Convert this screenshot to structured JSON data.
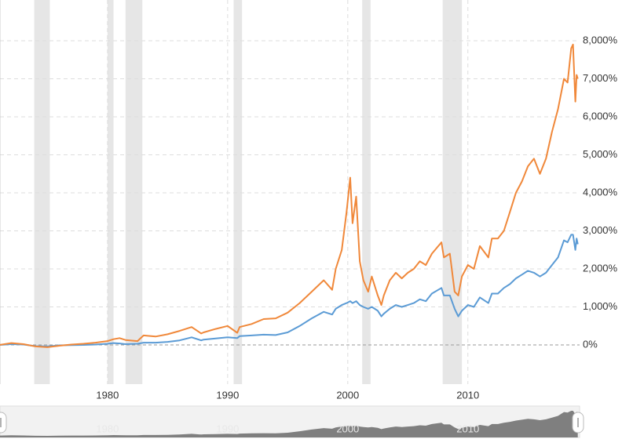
{
  "chart_data": {
    "type": "line",
    "x": [
      1971,
      1972,
      1973,
      1974,
      1975,
      1976,
      1977,
      1978,
      1979,
      1980,
      1980.5,
      1981,
      1981.5,
      1982.5,
      1983,
      1984,
      1985,
      1986,
      1987,
      1987.8,
      1988,
      1989,
      1990,
      1990.8,
      1991,
      1992,
      1993,
      1994,
      1995,
      1996,
      1997,
      1998,
      1998.7,
      1999,
      1999.5,
      1999.9,
      2000.2,
      2000.4,
      2000.7,
      2001,
      2001.3,
      2001.7,
      2002,
      2002.5,
      2002.8,
      2003,
      2003.5,
      2004,
      2004.5,
      2005,
      2005.5,
      2006,
      2006.5,
      2007,
      2007.8,
      2008,
      2008.5,
      2008.9,
      2009.2,
      2009.5,
      2010,
      2010.5,
      2011,
      2011.7,
      2012,
      2012.5,
      2013,
      2013.5,
      2014,
      2014.5,
      2015,
      2015.5,
      2016,
      2016.5,
      2017,
      2017.5,
      2018,
      2018.3,
      2018.6,
      2018.75,
      2018.95,
      2019.05,
      2019.15
    ],
    "series": [
      {
        "color": "#f0883a",
        "values": [
          0,
          50,
          20,
          -40,
          -60,
          -20,
          10,
          30,
          60,
          100,
          150,
          180,
          130,
          100,
          250,
          220,
          280,
          370,
          470,
          300,
          330,
          420,
          500,
          320,
          470,
          550,
          680,
          700,
          850,
          1100,
          1400,
          1700,
          1450,
          2000,
          2500,
          3500,
          4400,
          3200,
          3900,
          2200,
          1700,
          1400,
          1800,
          1300,
          1050,
          1300,
          1700,
          1900,
          1750,
          1900,
          2000,
          2200,
          2100,
          2400,
          2700,
          2300,
          2400,
          1400,
          1300,
          1800,
          2100,
          2000,
          2600,
          2300,
          2800,
          2800,
          3000,
          3500,
          4000,
          4300,
          4700,
          4900,
          4500,
          4900,
          5600,
          6200,
          7000,
          6900,
          7800,
          7900,
          6400,
          7100,
          7000
        ]
      },
      {
        "color": "#5b9bd5",
        "values": [
          0,
          20,
          10,
          -30,
          -40,
          -10,
          -5,
          0,
          10,
          30,
          50,
          40,
          20,
          30,
          60,
          60,
          80,
          120,
          200,
          120,
          140,
          170,
          200,
          180,
          230,
          250,
          270,
          260,
          330,
          500,
          700,
          870,
          800,
          950,
          1050,
          1100,
          1150,
          1100,
          1150,
          1050,
          1000,
          950,
          1000,
          900,
          750,
          820,
          950,
          1050,
          1000,
          1050,
          1100,
          1200,
          1150,
          1350,
          1500,
          1300,
          1300,
          950,
          750,
          900,
          1050,
          1000,
          1250,
          1100,
          1350,
          1350,
          1500,
          1600,
          1750,
          1850,
          1950,
          1900,
          1800,
          1900,
          2100,
          2300,
          2750,
          2700,
          2900,
          2900,
          2500,
          2800,
          2650
        ]
      }
    ],
    "recessions": [
      [
        1973.9,
        1975.2
      ],
      [
        1980.0,
        1980.5
      ],
      [
        1981.5,
        1982.9
      ],
      [
        1990.5,
        1991.2
      ],
      [
        2001.2,
        2001.9
      ],
      [
        2007.9,
        2009.5
      ]
    ],
    "xlim": [
      1971.05,
      2019.3
    ],
    "xticks": [
      1980,
      1990,
      2000,
      2010
    ],
    "ylim": [
      -1000,
      9000
    ],
    "yticks": [
      {
        "value": 0,
        "label": "0%"
      },
      {
        "value": 1000,
        "label": "1,000%"
      },
      {
        "value": 2000,
        "label": "2,000%"
      },
      {
        "value": 3000,
        "label": "3,000%"
      },
      {
        "value": 4000,
        "label": "4,000%"
      },
      {
        "value": 5000,
        "label": "5,000%"
      },
      {
        "value": 6000,
        "label": "6,000%"
      },
      {
        "value": 7000,
        "label": "7,000%"
      },
      {
        "value": 8000,
        "label": "8,000%"
      }
    ],
    "grid": true
  }
}
